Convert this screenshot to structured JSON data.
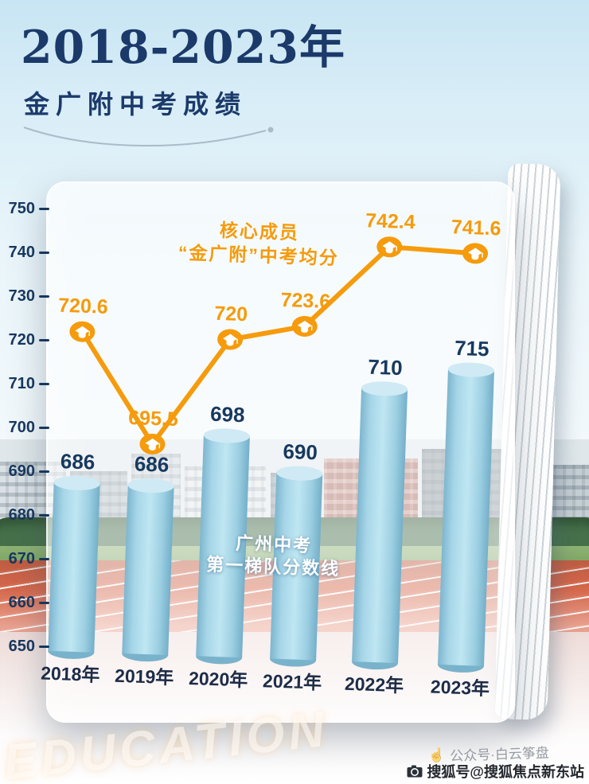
{
  "header": {
    "title_years": "2018-2023年",
    "subtitle": "金广附中考成绩"
  },
  "chart_data": {
    "type": "bar+line",
    "title": "2018-2023年金广附中考成绩",
    "categories": [
      "2018年",
      "2019年",
      "2020年",
      "2021年",
      "2022年",
      "2023年"
    ],
    "series": [
      {
        "name": "广州中考第一梯队分数线",
        "type": "bar",
        "values": [
          686,
          686,
          698,
          690,
          710,
          715
        ]
      },
      {
        "name": "核心成员“金广附”中考均分",
        "type": "line",
        "values": [
          720.6,
          695.5,
          720,
          723.6,
          742.4,
          741.6
        ]
      }
    ],
    "y_ticks": [
      650,
      660,
      670,
      680,
      690,
      700,
      710,
      720,
      730,
      740,
      750
    ],
    "ylim": [
      645,
      755
    ],
    "grid": false,
    "legend_position": "annotations-on-chart",
    "bar_color": "#9fd0e2",
    "line_color": "#f59b0c",
    "axis_color": "#17375e",
    "annotations": {
      "line_label_lines": [
        "核心成员",
        "“金广附”中考均分"
      ],
      "bar_label_lines": [
        "广州中考",
        "第一梯队分数线"
      ]
    }
  },
  "footer": {
    "wechat_watermark": "公众号·白云筝盘",
    "sohu_watermark": "搜狐号@搜狐焦点新东站",
    "education_watermark": "EDUCATION"
  }
}
